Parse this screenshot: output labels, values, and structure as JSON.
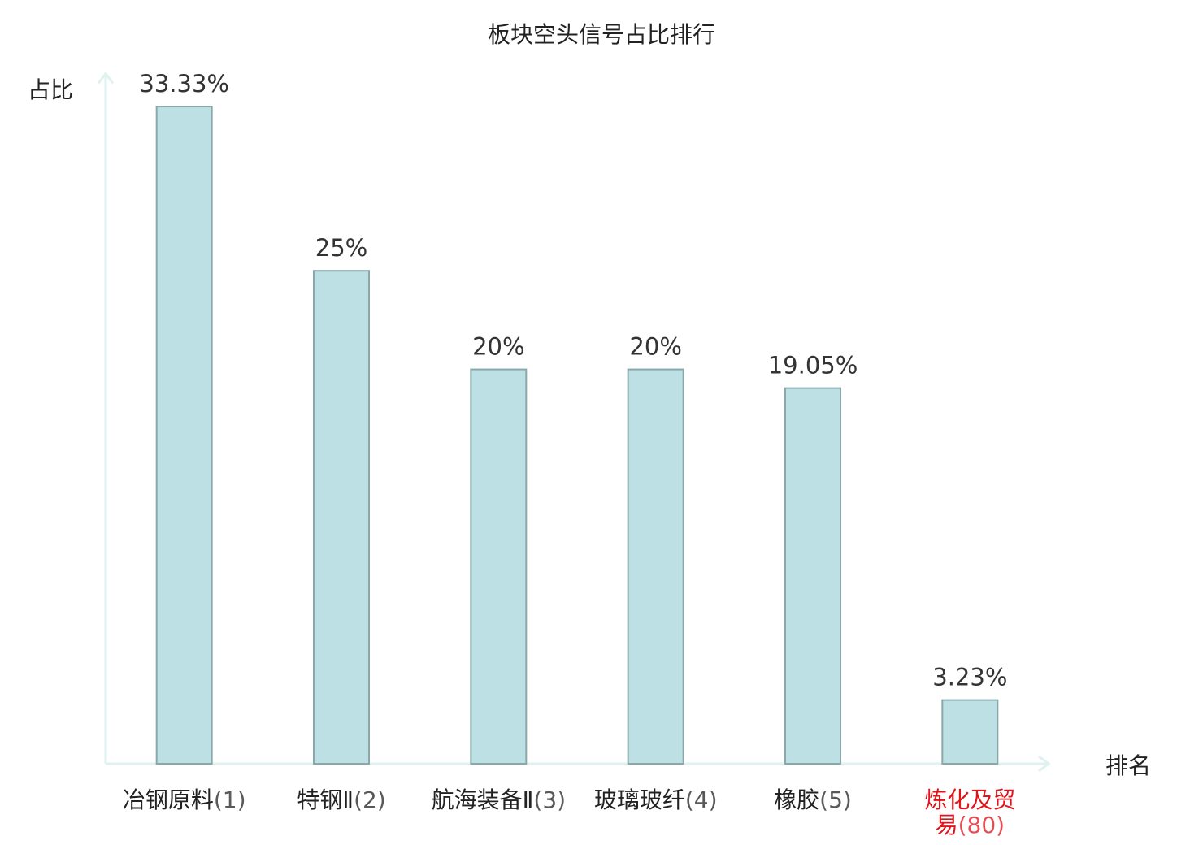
{
  "chart_data": {
    "type": "bar",
    "title": "板块空头信号占比排行",
    "y_label": "占比",
    "x_label": "排名",
    "categories": [
      "冶钢原料(1)",
      "特钢Ⅱ(2)",
      "航海装备Ⅱ(3)",
      "玻璃玻纤(4)",
      "橡胶(5)",
      "炼化及贸易(80)"
    ],
    "values": [
      33.33,
      25,
      20,
      20,
      19.05,
      3.23
    ],
    "value_labels": [
      "33.33%",
      "25%",
      "20%",
      "20%",
      "19.05%",
      "3.23%"
    ],
    "color": "#bce0e3",
    "edge_color": "#8aa8aa",
    "axis_color": "#dff2ef",
    "category_colors": [
      "#222222",
      "#222222",
      "#222222",
      "#222222",
      "#222222",
      "#e0141a"
    ],
    "ylim": [
      0,
      35
    ]
  }
}
